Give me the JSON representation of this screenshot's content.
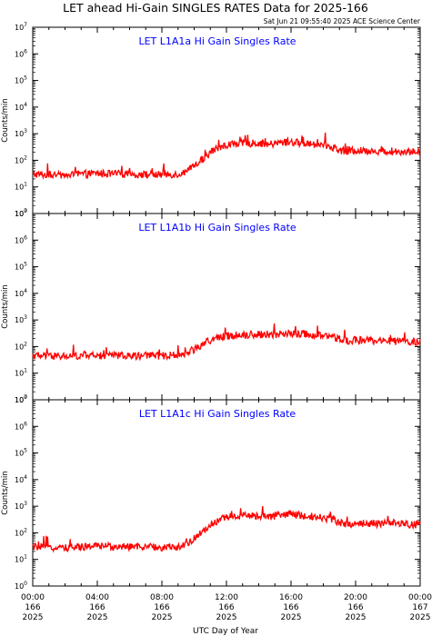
{
  "title": "LET ahead Hi-Gain SINGLES RATES Data for 2025-166",
  "timestamp": "Sat Jun 21 09:55:40 2025 ACE Science Center",
  "colors": {
    "series": "#ff0000",
    "panel_label": "#0000ff",
    "axes": "#000000"
  },
  "chart_data": [
    {
      "type": "line",
      "title": "LET L1A1a Hi Gain Singles Rate",
      "ylabel": "Counts/min",
      "yscale": "log",
      "ylim": [
        1,
        10000000
      ],
      "ytick_exponents": [
        "0",
        "1",
        "2",
        "3",
        "4",
        "5",
        "6",
        "7"
      ],
      "xlim": [
        0,
        24
      ],
      "x_unit": "UTC hours of 2025-166",
      "series": [
        {
          "x": [
            0,
            1,
            2,
            3,
            4,
            5,
            6,
            7,
            8,
            9,
            9.5,
            10,
            10.5,
            11,
            11.5,
            12,
            12.5,
            13,
            13.5,
            14,
            14.5,
            15,
            15.5,
            16,
            16.5,
            17,
            17.5,
            18,
            18.5,
            19,
            19.5,
            20,
            21,
            22,
            23,
            24
          ],
          "y": [
            30,
            28,
            27,
            30,
            32,
            31,
            30,
            29,
            29,
            30,
            35,
            60,
            110,
            200,
            300,
            380,
            420,
            440,
            430,
            440,
            390,
            420,
            470,
            480,
            460,
            430,
            400,
            370,
            330,
            240,
            210,
            230,
            225,
            220,
            215,
            200
          ]
        }
      ]
    },
    {
      "type": "line",
      "title": "LET L1A1b Hi Gain Singles Rate",
      "ylabel": "Counts/min",
      "yscale": "log",
      "ylim": [
        1,
        10000000
      ],
      "ytick_exponents": [
        "0",
        "1",
        "2",
        "3",
        "4",
        "5",
        "6",
        "7"
      ],
      "xlim": [
        0,
        24
      ],
      "x_unit": "UTC hours of 2025-166",
      "series": [
        {
          "x": [
            0,
            1,
            2,
            3,
            4,
            5,
            6,
            7,
            8,
            9,
            9.5,
            10,
            10.5,
            11,
            11.5,
            12,
            12.5,
            13,
            13.5,
            14,
            14.5,
            15,
            15.5,
            16,
            16.5,
            17,
            17.5,
            18,
            18.5,
            19,
            19.5,
            20,
            21,
            22,
            23,
            24
          ],
          "y": [
            45,
            44,
            43,
            45,
            46,
            46,
            45,
            45,
            45,
            48,
            55,
            80,
            120,
            170,
            220,
            250,
            270,
            280,
            280,
            290,
            270,
            280,
            300,
            310,
            300,
            290,
            270,
            250,
            230,
            190,
            170,
            175,
            165,
            160,
            155,
            150
          ]
        }
      ]
    },
    {
      "type": "line",
      "title": "LET L1A1c Hi Gain Singles Rate",
      "ylabel": "Counts/min",
      "yscale": "log",
      "ylim": [
        1,
        10000000
      ],
      "ytick_exponents": [
        "0",
        "1",
        "2",
        "3",
        "4",
        "5",
        "6",
        "7"
      ],
      "xlim": [
        0,
        24
      ],
      "x_unit": "UTC hours of 2025-166",
      "series": [
        {
          "x": [
            0,
            1,
            2,
            3,
            4,
            5,
            6,
            7,
            8,
            9,
            9.5,
            10,
            10.5,
            11,
            11.5,
            12,
            12.5,
            13,
            13.5,
            14,
            14.5,
            15,
            15.5,
            16,
            16.5,
            17,
            17.5,
            18,
            18.5,
            19,
            19.5,
            20,
            21,
            22,
            23,
            24
          ],
          "y": [
            30,
            28,
            27,
            30,
            32,
            31,
            30,
            29,
            28,
            30,
            35,
            60,
            110,
            200,
            300,
            380,
            420,
            440,
            430,
            440,
            390,
            420,
            470,
            480,
            460,
            430,
            400,
            370,
            330,
            240,
            210,
            230,
            225,
            220,
            215,
            200
          ]
        }
      ]
    }
  ],
  "x_ticks": [
    {
      "hour": 0,
      "time": "00:00",
      "doy": "166",
      "year": "2025"
    },
    {
      "hour": 4,
      "time": "04:00",
      "doy": "166",
      "year": "2025"
    },
    {
      "hour": 8,
      "time": "08:00",
      "doy": "166",
      "year": "2025"
    },
    {
      "hour": 12,
      "time": "12:00",
      "doy": "166",
      "year": "2025"
    },
    {
      "hour": 16,
      "time": "16:00",
      "doy": "166",
      "year": "2025"
    },
    {
      "hour": 20,
      "time": "20:00",
      "doy": "166",
      "year": "2025"
    },
    {
      "hour": 24,
      "time": "00:00",
      "doy": "167",
      "year": "2025"
    }
  ],
  "xlabel": "UTC Day of Year"
}
